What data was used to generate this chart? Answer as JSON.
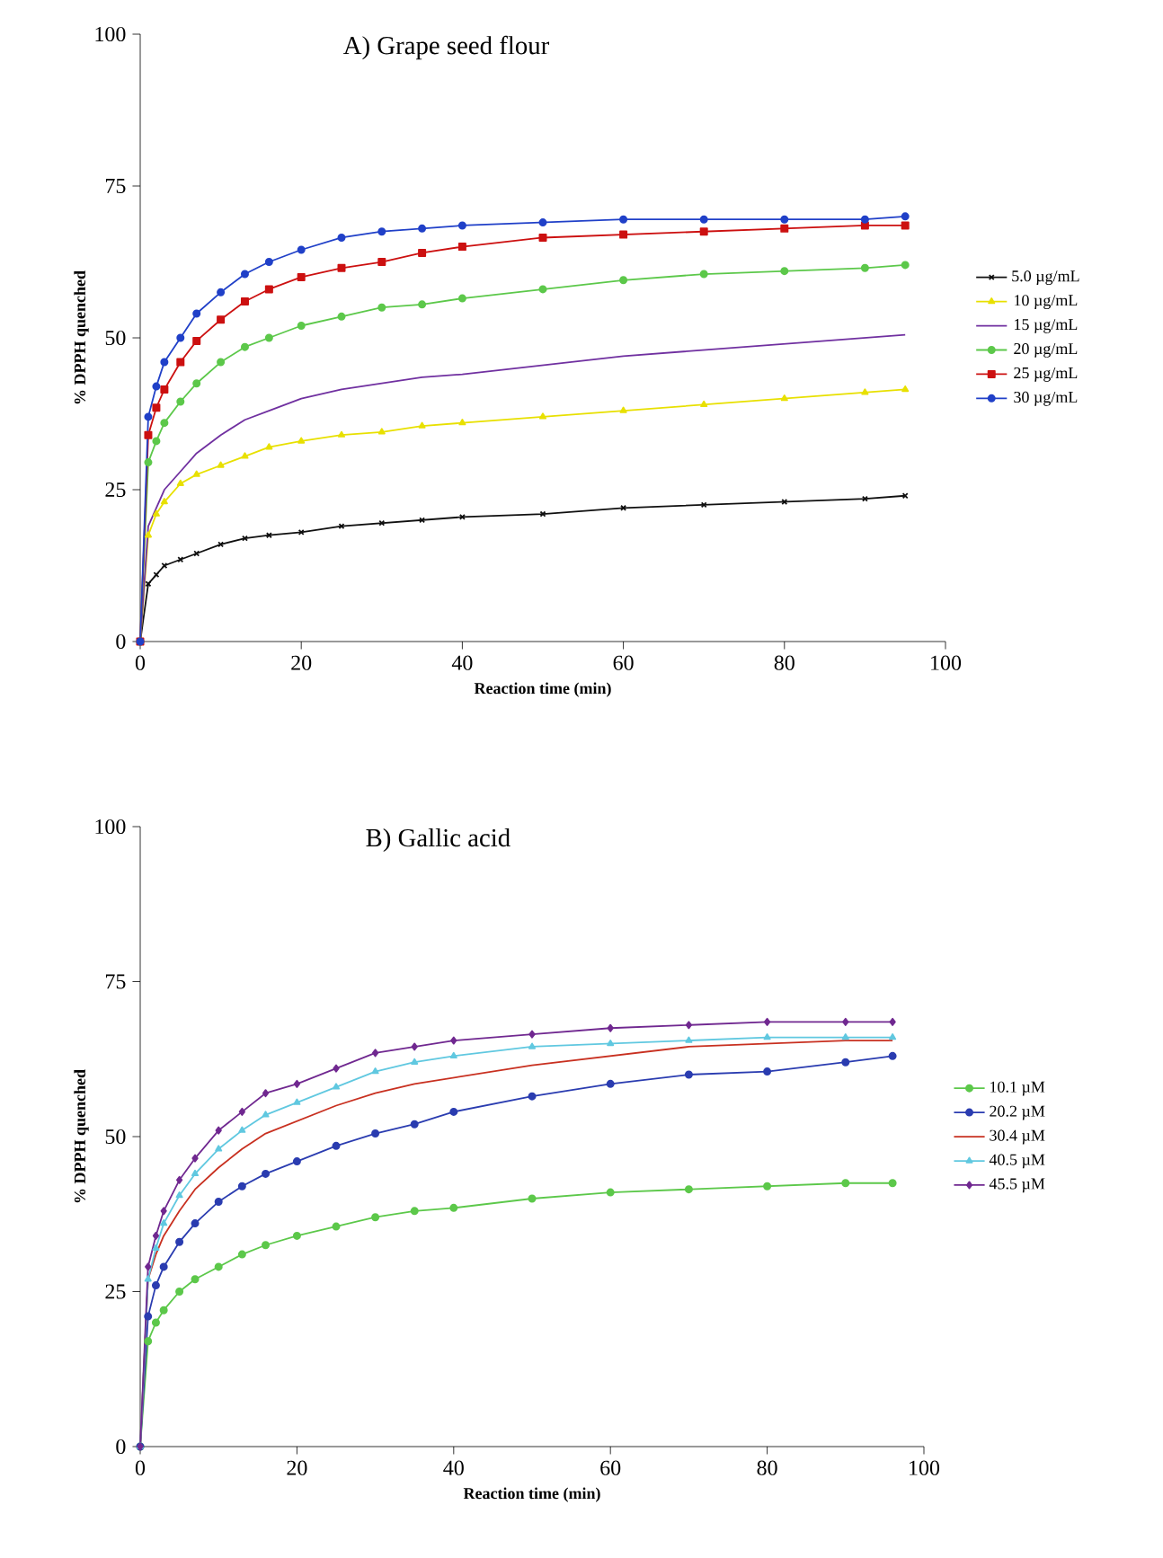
{
  "chart_data": [
    {
      "type": "line",
      "title": "A) Grape seed flour",
      "xlabel": "Reaction time (min)",
      "ylabel": "% DPPH quenched",
      "xlim": [
        0,
        100
      ],
      "ylim": [
        0,
        100
      ],
      "xticks": [
        0,
        20,
        40,
        60,
        80,
        100
      ],
      "yticks": [
        0,
        25,
        50,
        75,
        100
      ],
      "legend": "right",
      "grid": false,
      "x": [
        0,
        1,
        2,
        3,
        5,
        7,
        10,
        13,
        16,
        20,
        25,
        30,
        35,
        40,
        50,
        60,
        70,
        80,
        90,
        95
      ],
      "series": [
        {
          "name": "5.0 µg/mL",
          "color": "#101010",
          "marker": "cross",
          "values": [
            0,
            9.5,
            11,
            12.5,
            13.5,
            14.5,
            16,
            17,
            17.5,
            18,
            19,
            19.5,
            20,
            20.5,
            21,
            22,
            22.5,
            23,
            23.5,
            24
          ]
        },
        {
          "name": "10 µg/mL",
          "color": "#e8e000",
          "marker": "triangle",
          "values": [
            0,
            17.5,
            21,
            23,
            26,
            27.5,
            29,
            30.5,
            32,
            33,
            34,
            34.5,
            35.5,
            36,
            37,
            38,
            39,
            40,
            41,
            41.5
          ]
        },
        {
          "name": "15 µg/mL",
          "color": "#7030a0",
          "marker": "none",
          "values": [
            0,
            19,
            22,
            25,
            28,
            31,
            34,
            36.5,
            38,
            40,
            41.5,
            42.5,
            43.5,
            44,
            45.5,
            47,
            48,
            49,
            50,
            50.5
          ]
        },
        {
          "name": "20 µg/mL",
          "color": "#5cc84a",
          "marker": "circle",
          "values": [
            0,
            29.5,
            33,
            36,
            39.5,
            42.5,
            46,
            48.5,
            50,
            52,
            53.5,
            55,
            55.5,
            56.5,
            58,
            59.5,
            60.5,
            61,
            61.5,
            62
          ]
        },
        {
          "name": "25 µg/mL",
          "color": "#cc1010",
          "marker": "square",
          "values": [
            0,
            34,
            38.5,
            41.5,
            46,
            49.5,
            53,
            56,
            58,
            60,
            61.5,
            62.5,
            64,
            65,
            66.5,
            67,
            67.5,
            68,
            68.5,
            68.5
          ]
        },
        {
          "name": "30 µg/mL",
          "color": "#2040c8",
          "marker": "circle",
          "values": [
            0,
            37,
            42,
            46,
            50,
            54,
            57.5,
            60.5,
            62.5,
            64.5,
            66.5,
            67.5,
            68,
            68.5,
            69,
            69.5,
            69.5,
            69.5,
            69.5,
            70
          ]
        }
      ]
    },
    {
      "type": "line",
      "title": "B) Gallic acid",
      "xlabel": "Reaction time (min)",
      "ylabel": "% DPPH quenched",
      "xlim": [
        0,
        100
      ],
      "ylim": [
        0,
        100
      ],
      "xticks": [
        0,
        20,
        40,
        60,
        80,
        100
      ],
      "yticks": [
        0,
        25,
        50,
        75,
        100
      ],
      "legend": "right",
      "grid": false,
      "x": [
        0,
        1,
        2,
        3,
        5,
        7,
        10,
        13,
        16,
        20,
        25,
        30,
        35,
        40,
        50,
        60,
        70,
        80,
        90,
        96
      ],
      "series": [
        {
          "name": "10.1 µM",
          "color": "#5cc84a",
          "marker": "circle",
          "values": [
            0,
            17,
            20,
            22,
            25,
            27,
            29,
            31,
            32.5,
            34,
            35.5,
            37,
            38,
            38.5,
            40,
            41,
            41.5,
            42,
            42.5,
            42.5
          ]
        },
        {
          "name": "20.2 µM",
          "color": "#2a3cb0",
          "marker": "circle",
          "values": [
            0,
            21,
            26,
            29,
            33,
            36,
            39.5,
            42,
            44,
            46,
            48.5,
            50.5,
            52,
            54,
            56.5,
            58.5,
            60,
            60.5,
            62,
            63
          ]
        },
        {
          "name": "30.4 µM",
          "color": "#c83020",
          "marker": "none",
          "values": [
            0,
            27,
            31,
            34,
            38,
            41.5,
            45,
            48,
            50.5,
            52.5,
            55,
            57,
            58.5,
            59.5,
            61.5,
            63,
            64.5,
            65,
            65.5,
            65.5
          ]
        },
        {
          "name": "40.5 µM",
          "color": "#60c8e0",
          "marker": "triangle",
          "values": [
            0,
            27,
            32,
            36,
            40.5,
            44,
            48,
            51,
            53.5,
            55.5,
            58,
            60.5,
            62,
            63,
            64.5,
            65,
            65.5,
            66,
            66,
            66
          ]
        },
        {
          "name": "45.5 µM",
          "color": "#702890",
          "marker": "diamond",
          "values": [
            0,
            29,
            34,
            38,
            43,
            46.5,
            51,
            54,
            57,
            58.5,
            61,
            63.5,
            64.5,
            65.5,
            66.5,
            67.5,
            68,
            68.5,
            68.5,
            68.5
          ]
        }
      ]
    }
  ]
}
